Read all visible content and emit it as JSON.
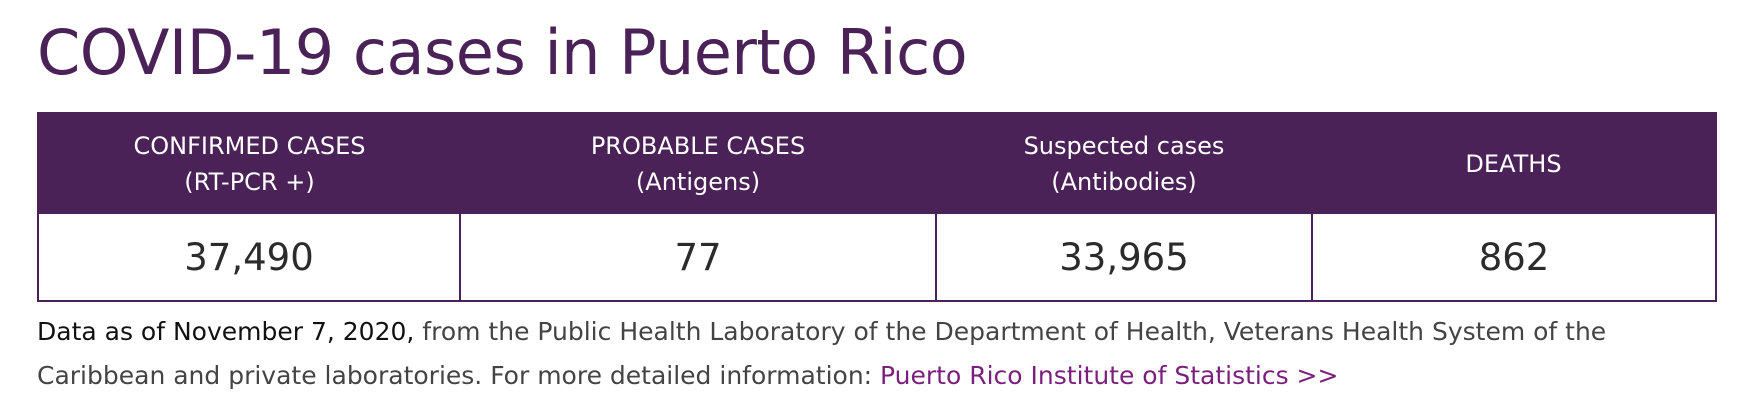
{
  "page": {
    "title": "COVID-19 cases in Puerto Rico"
  },
  "table": {
    "columns": [
      {
        "label": "CONFIRMED CASES",
        "sublabel": "(RT-PCR +)",
        "value": "37,490"
      },
      {
        "label": "PROBABLE CASES",
        "sublabel": "(Antigens)",
        "value": "77"
      },
      {
        "label": "Suspected cases",
        "sublabel": "(Antibodies)",
        "value": "33,965"
      },
      {
        "label": "DEATHS",
        "sublabel": "",
        "value": "862"
      }
    ]
  },
  "note": {
    "as_of": "Data as of November 7, 2020,",
    "text": " from the Public Health Laboratory of the Department of Health, Veterans Health System of the Caribbean and private laboratories. For more detailed information: ",
    "link_label": "Puerto Rico Institute of Statistics >>"
  },
  "colors": {
    "brand_purple": "#4a2257",
    "link_purple": "#7a1f7d"
  }
}
